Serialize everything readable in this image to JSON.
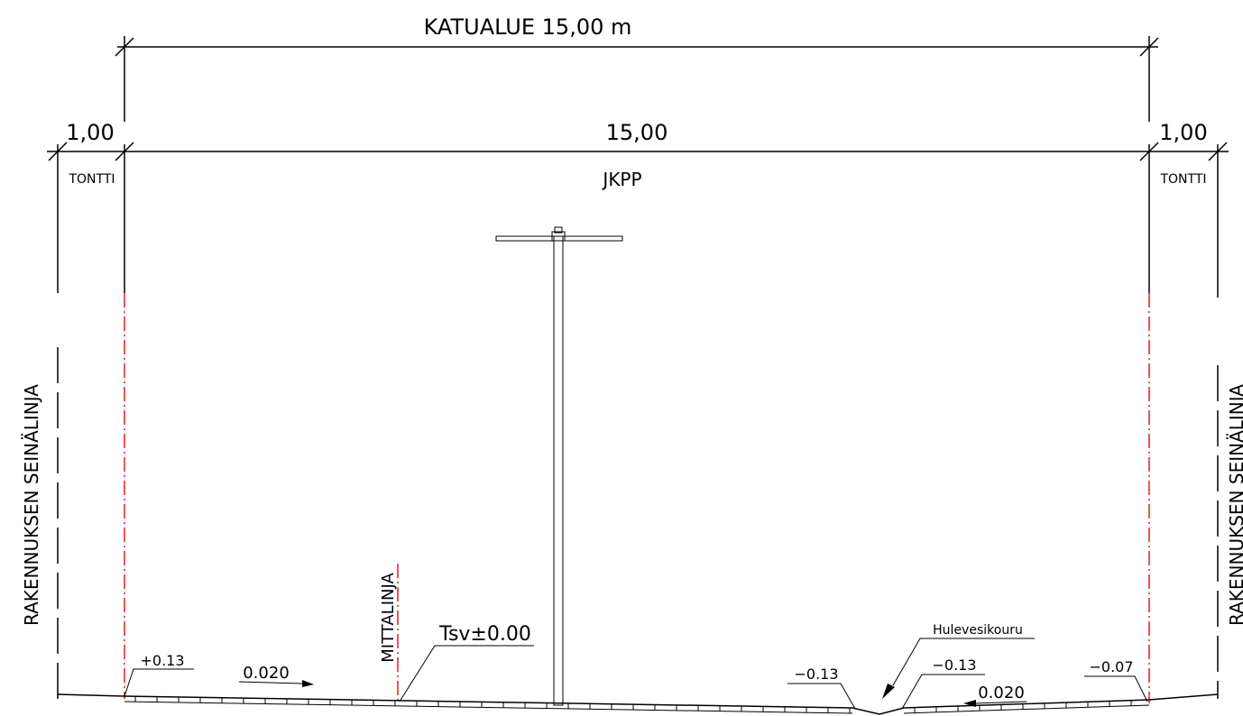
{
  "dimensions": {
    "total": "KATUALUE 15,00 m",
    "left": "1,00",
    "middle": "15,00",
    "right": "1,00"
  },
  "zones": {
    "left": "TONTTI",
    "middle": "JKPP",
    "right": "TONTTI"
  },
  "wall_lines": {
    "left": "RAKENNUKSEN SEINÄLINJA",
    "right": "RAKENNUKSEN SEINÄLINJA"
  },
  "annotations": {
    "measure_line": "MITTALINJA",
    "reference": "Tsv±0.00",
    "gutter": "Hulevesikouru"
  },
  "levels": {
    "left_edge": "+0.13",
    "gutter_left": "−0.13",
    "gutter_right": "−0.13",
    "right_edge": "−0.07"
  },
  "slopes": {
    "left": "0.020",
    "right": "0.020"
  }
}
